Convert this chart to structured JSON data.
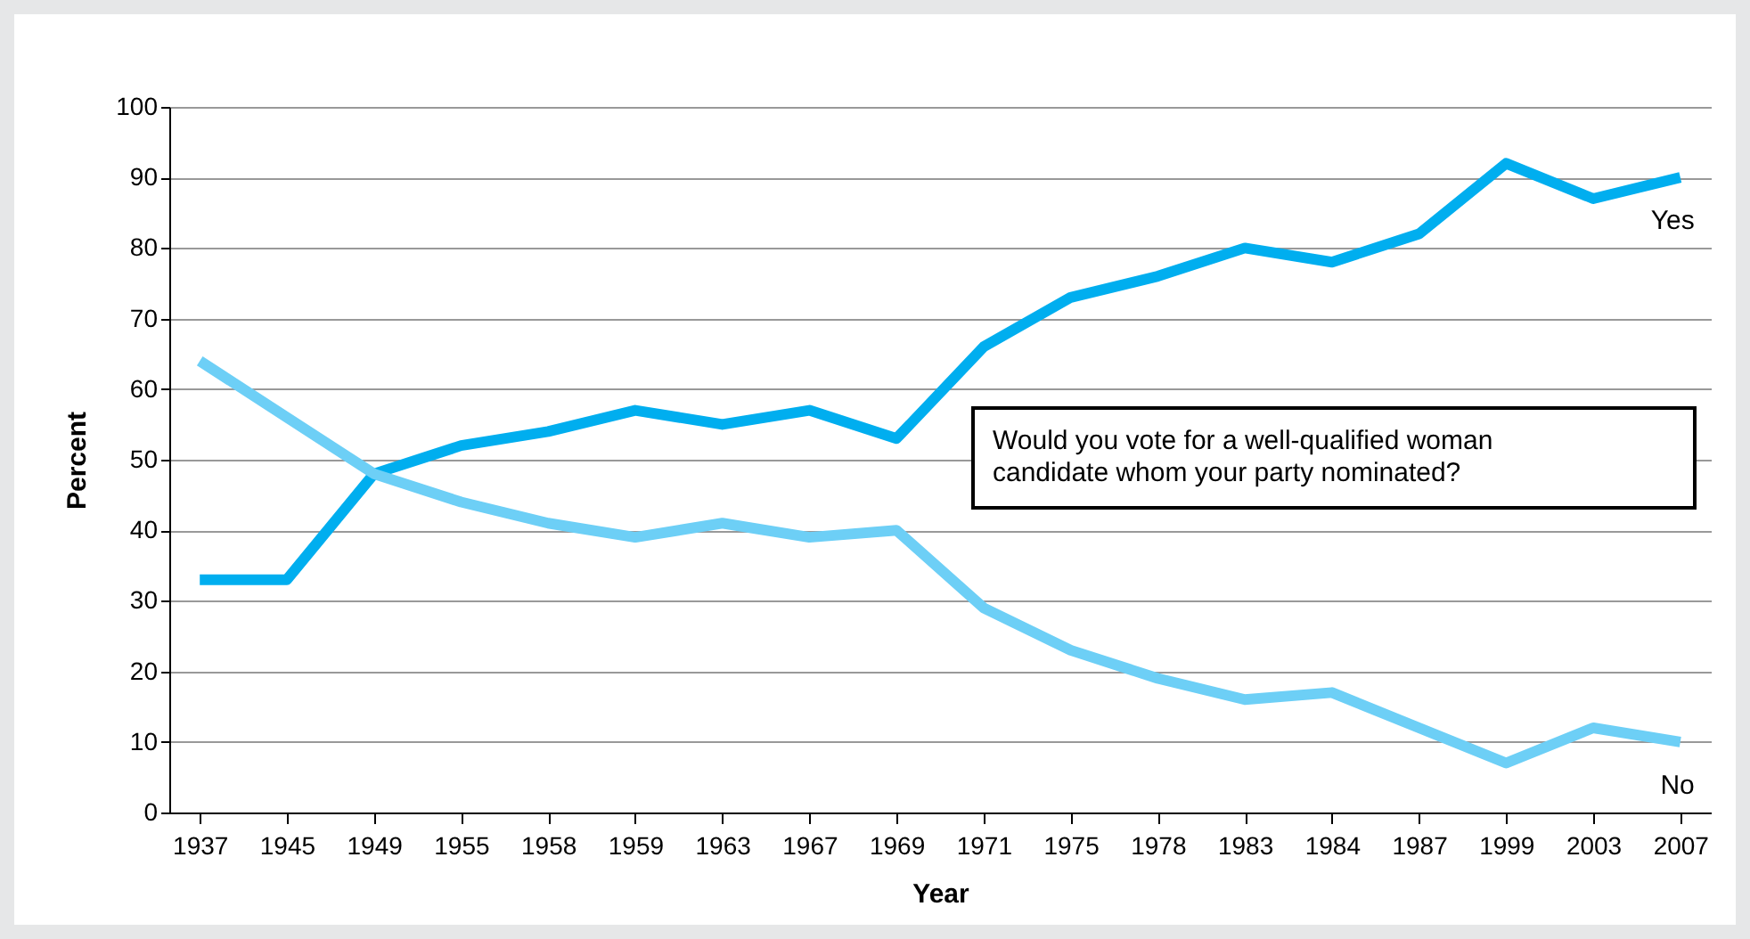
{
  "chart_data": {
    "type": "line",
    "xlabel": "Year",
    "ylabel": "Percent",
    "categories": [
      "1937",
      "1945",
      "1949",
      "1955",
      "1958",
      "1959",
      "1963",
      "1967",
      "1969",
      "1971",
      "1975",
      "1978",
      "1983",
      "1984",
      "1987",
      "1999",
      "2003",
      "2007"
    ],
    "series": [
      {
        "name": "Yes",
        "color": "#00aeef",
        "values": [
          33,
          33,
          48,
          52,
          54,
          57,
          55,
          57,
          53,
          66,
          73,
          76,
          80,
          78,
          82,
          92,
          87,
          90
        ]
      },
      {
        "name": "No",
        "color": "#6dcff6",
        "values": [
          64,
          56,
          48,
          44,
          41,
          39,
          41,
          39,
          40,
          29,
          23,
          19,
          16,
          17,
          12,
          7,
          12,
          10
        ]
      }
    ],
    "ylim": [
      0,
      100
    ],
    "yticks": [
      0,
      10,
      20,
      30,
      40,
      50,
      60,
      70,
      80,
      90,
      100
    ],
    "grid": "y",
    "legend": false,
    "annotations": [
      "Would you vote for a well-qualified woman candidate whom your party nominated?"
    ]
  }
}
